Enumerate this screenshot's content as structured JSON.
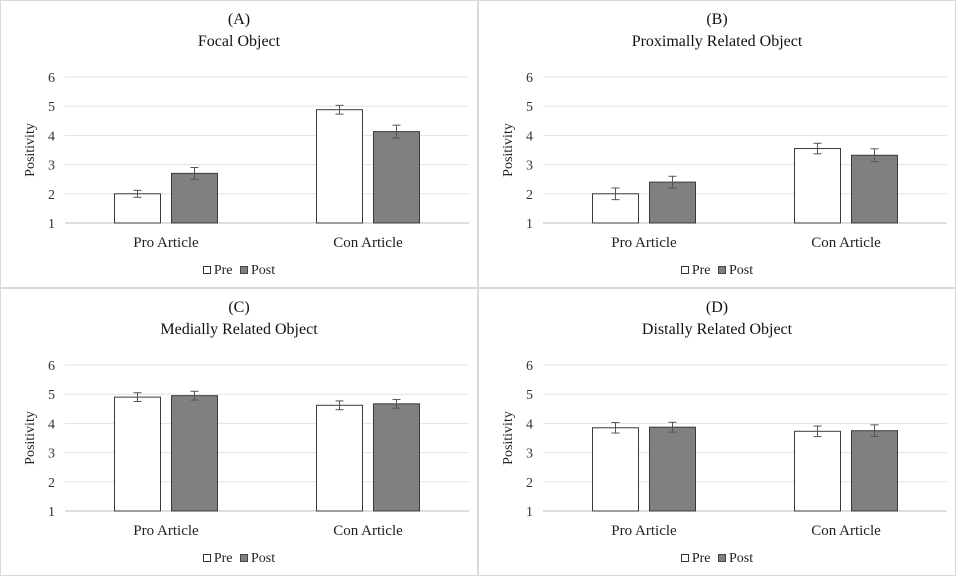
{
  "chart_data": [
    {
      "type": "bar",
      "label": "(A)",
      "title": "Focal Object",
      "ylabel": "Positivity",
      "ylim": [
        1,
        6
      ],
      "yticks": [
        "1",
        "2",
        "3",
        "4",
        "5",
        "6"
      ],
      "categories": [
        "Pro Article",
        "Con Article"
      ],
      "grid": true,
      "legend": "bottom",
      "series": [
        {
          "name": "Pre",
          "values": [
            2.0,
            4.88
          ],
          "errors": [
            0.12,
            0.15
          ],
          "color": "#ffffff"
        },
        {
          "name": "Post",
          "values": [
            2.7,
            4.13
          ],
          "errors": [
            0.2,
            0.22
          ],
          "color": "#808080"
        }
      ]
    },
    {
      "type": "bar",
      "label": "(B)",
      "title": "Proximally Related Object",
      "ylabel": "Positivity",
      "ylim": [
        1,
        6
      ],
      "yticks": [
        "1",
        "2",
        "3",
        "4",
        "5",
        "6"
      ],
      "categories": [
        "Pro Article",
        "Con Article"
      ],
      "grid": true,
      "legend": "bottom",
      "series": [
        {
          "name": "Pre",
          "values": [
            2.0,
            3.55
          ],
          "errors": [
            0.2,
            0.18
          ],
          "color": "#ffffff"
        },
        {
          "name": "Post",
          "values": [
            2.4,
            3.32
          ],
          "errors": [
            0.2,
            0.22
          ],
          "color": "#808080"
        }
      ]
    },
    {
      "type": "bar",
      "label": "(C)",
      "title": "Medially Related Object",
      "ylabel": "Positivity",
      "ylim": [
        1,
        6
      ],
      "yticks": [
        "1",
        "2",
        "3",
        "4",
        "5",
        "6"
      ],
      "categories": [
        "Pro Article",
        "Con Article"
      ],
      "grid": true,
      "legend": "bottom",
      "series": [
        {
          "name": "Pre",
          "values": [
            4.9,
            4.62
          ],
          "errors": [
            0.15,
            0.15
          ],
          "color": "#ffffff"
        },
        {
          "name": "Post",
          "values": [
            4.95,
            4.67
          ],
          "errors": [
            0.15,
            0.15
          ],
          "color": "#808080"
        }
      ]
    },
    {
      "type": "bar",
      "label": "(D)",
      "title": "Distally Related Object",
      "ylabel": "Positivity",
      "ylim": [
        1,
        6
      ],
      "yticks": [
        "1",
        "2",
        "3",
        "4",
        "5",
        "6"
      ],
      "categories": [
        "Pro Article",
        "Con Article"
      ],
      "grid": true,
      "legend": "bottom",
      "series": [
        {
          "name": "Pre",
          "values": [
            3.85,
            3.73
          ],
          "errors": [
            0.18,
            0.18
          ],
          "color": "#ffffff"
        },
        {
          "name": "Post",
          "values": [
            3.87,
            3.75
          ],
          "errors": [
            0.17,
            0.2
          ],
          "color": "#808080"
        }
      ]
    }
  ]
}
